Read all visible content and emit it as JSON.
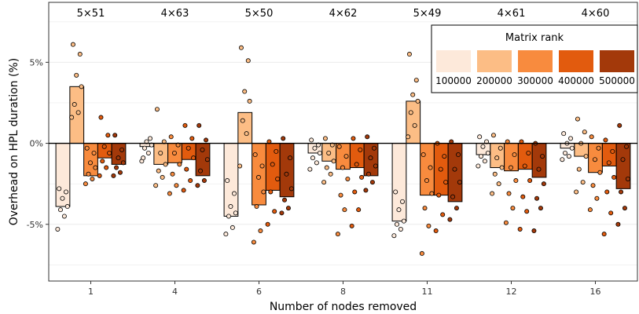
{
  "chart_data": {
    "type": "bar",
    "xlabel": "Number of nodes removed",
    "ylabel": "Overhead on HPL duration (%)",
    "ylim": [
      -8.5,
      8.7
    ],
    "yticks": [
      -5,
      0,
      5
    ],
    "ytick_labels": [
      "-5%",
      "0%",
      "5%"
    ],
    "grid": true,
    "legend_position": "top-right",
    "legend": {
      "title": "Matrix rank",
      "entries": [
        {
          "name": "100000",
          "color": "#fde9da"
        },
        {
          "name": "200000",
          "color": "#fcbd85"
        },
        {
          "name": "300000",
          "color": "#f88b3e"
        },
        {
          "name": "400000",
          "color": "#e25b0e"
        },
        {
          "name": "500000",
          "color": "#a3390a"
        }
      ]
    },
    "categories": [
      "1",
      "4",
      "6",
      "8",
      "11",
      "12",
      "16"
    ],
    "grid_labels": [
      "5×51",
      "4×63",
      "5×50",
      "4×62",
      "5×49",
      "4×61",
      "4×60"
    ],
    "series": [
      {
        "name": "100000",
        "values": [
          -3.9,
          -0.2,
          -4.5,
          -0.6,
          -4.8,
          -0.7,
          -0.3
        ],
        "points": [
          [
            -5.3,
            -4.5,
            -4.1,
            -3.9,
            -3.4,
            -3.0,
            -2.8
          ],
          [
            -1.1,
            -0.6,
            -0.3,
            -0.1,
            0.1,
            0.3,
            -0.9
          ],
          [
            -5.6,
            -5.2,
            -4.5,
            -4.3,
            -3.9,
            -3.1,
            -2.3
          ],
          [
            -1.6,
            -1.2,
            -0.9,
            -0.6,
            -0.3,
            -0.1,
            0.2
          ],
          [
            -5.7,
            -5.3,
            -5.0,
            -4.8,
            -4.1,
            -3.6,
            -3.0
          ],
          [
            -1.4,
            -1.1,
            -0.8,
            -0.6,
            -0.2,
            0.1,
            0.4
          ],
          [
            -1.0,
            -0.8,
            -0.6,
            -0.3,
            0.0,
            0.3,
            0.6
          ]
        ]
      },
      {
        "name": "200000",
        "values": [
          3.5,
          -1.3,
          1.9,
          -1.1,
          2.6,
          -1.5,
          -0.8
        ],
        "points": [
          [
            1.6,
            1.9,
            2.4,
            3.5,
            4.2,
            5.5,
            6.1
          ],
          [
            -2.6,
            -2.1,
            -1.7,
            -1.3,
            -0.6,
            0.1,
            2.1
          ],
          [
            -1.4,
            0.6,
            1.4,
            2.6,
            3.2,
            5.1,
            5.9
          ],
          [
            -2.4,
            -1.9,
            -1.5,
            -1.1,
            -0.6,
            -0.1,
            0.3
          ],
          [
            0.4,
            1.1,
            1.9,
            2.6,
            3.0,
            3.9,
            5.5
          ],
          [
            -3.1,
            -2.5,
            -1.9,
            -1.5,
            -0.9,
            -0.3,
            0.5
          ],
          [
            -3.0,
            -2.4,
            -1.6,
            -0.8,
            0.0,
            0.7,
            1.5
          ]
        ]
      },
      {
        "name": "300000",
        "values": [
          -2.0,
          -1.2,
          -3.8,
          -1.6,
          -3.2,
          -1.7,
          -1.8
        ],
        "points": [
          [
            -2.5,
            -2.2,
            -1.9,
            -1.5,
            -1.2,
            -0.6,
            -0.3
          ],
          [
            -3.1,
            -2.6,
            -1.9,
            -1.3,
            -0.6,
            -0.1,
            0.4
          ],
          [
            -6.1,
            -5.4,
            -3.9,
            -3.0,
            -2.1,
            -1.4,
            -0.7
          ],
          [
            -5.6,
            -4.1,
            -3.2,
            -2.2,
            -1.5,
            -0.8,
            -0.2
          ],
          [
            -6.8,
            -5.1,
            -4.0,
            -3.1,
            -2.3,
            -1.5,
            -0.7
          ],
          [
            -4.9,
            -4.0,
            -3.1,
            -2.3,
            -1.5,
            -0.7,
            0.1
          ],
          [
            -4.1,
            -3.4,
            -2.6,
            -1.8,
            -1.0,
            -0.3,
            0.4
          ]
        ]
      },
      {
        "name": "400000",
        "values": [
          -0.9,
          -1.0,
          -2.9,
          -1.5,
          -3.2,
          -1.6,
          -1.4
        ],
        "points": [
          [
            -2.0,
            -1.5,
            -1.1,
            -0.6,
            -0.2,
            0.5,
            1.6
          ],
          [
            -2.9,
            -2.3,
            -1.6,
            -0.9,
            -0.3,
            0.3,
            1.1
          ],
          [
            -5.0,
            -4.2,
            -3.0,
            -2.2,
            -1.3,
            -0.5,
            0.1
          ],
          [
            -5.1,
            -4.1,
            -3.0,
            -2.1,
            -1.3,
            -0.4,
            0.3
          ],
          [
            -5.4,
            -4.4,
            -3.2,
            -2.4,
            -1.6,
            -0.8,
            0.0
          ],
          [
            -5.3,
            -4.2,
            -3.3,
            -2.3,
            -1.4,
            -0.6,
            0.1
          ],
          [
            -5.6,
            -4.3,
            -3.0,
            -2.1,
            -1.2,
            -0.5,
            0.2
          ]
        ]
      },
      {
        "name": "500000",
        "values": [
          -1.3,
          -2.0,
          -3.3,
          -2.0,
          -3.6,
          -2.1,
          -2.8
        ],
        "points": [
          [
            -2.0,
            -1.8,
            -1.5,
            -1.2,
            -0.9,
            -0.4,
            0.5
          ],
          [
            -2.6,
            -2.3,
            -1.7,
            -1.0,
            -0.4,
            0.2,
            1.1
          ],
          [
            -4.3,
            -4.0,
            -3.5,
            -2.8,
            -1.9,
            -0.9,
            0.3
          ],
          [
            -2.9,
            -2.4,
            -1.9,
            -1.4,
            -0.9,
            -0.3,
            0.4
          ],
          [
            -4.7,
            -4.0,
            -3.3,
            -2.4,
            -1.6,
            -0.7,
            0.1
          ],
          [
            -5.4,
            -4.0,
            -3.4,
            -2.5,
            -1.6,
            -0.8,
            0.0
          ],
          [
            -5.0,
            -4.0,
            -3.0,
            -2.2,
            -1.0,
            -0.2,
            1.1
          ]
        ]
      }
    ]
  }
}
